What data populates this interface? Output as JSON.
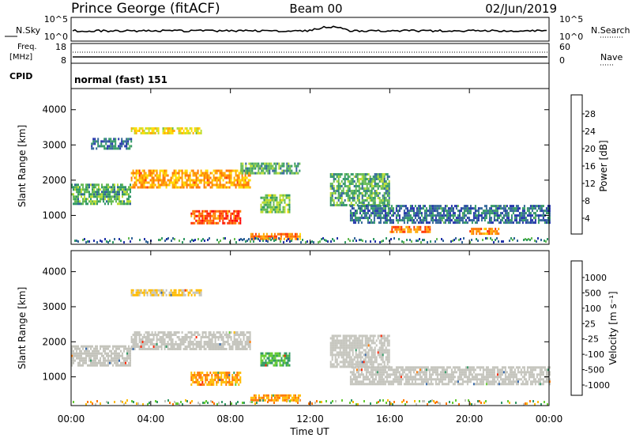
{
  "header": {
    "station": "Prince George (fitACF)",
    "beam": "Beam 00",
    "date": "02/Jun/2019"
  },
  "status_panels": {
    "nsky_label": "N.Sky",
    "nsky_ticks": [
      "10^5",
      "10^0"
    ],
    "nsearch_label": "N.Search",
    "nsearch_ticks": [
      "10^5",
      "10^0"
    ],
    "freq_label_1": "Freq.",
    "freq_label_2": "[MHz]",
    "freq_ticks": [
      "18",
      "8"
    ],
    "nave_label": "Nave",
    "nave_ticks": [
      "60",
      "0"
    ],
    "cpid_label": "CPID",
    "cpid_value": "normal (fast) 151"
  },
  "axes": {
    "y_label": "Slant Range [km]",
    "y_ticks": [
      "4000",
      "3000",
      "2000",
      "1000"
    ],
    "x_label": "Time UT",
    "x_ticks": [
      "00:00",
      "04:00",
      "08:00",
      "12:00",
      "16:00",
      "20:00",
      "00:00"
    ]
  },
  "power_colorbar": {
    "label": "Power [dB]",
    "ticks": [
      "28",
      "24",
      "20",
      "16",
      "12",
      "8",
      "4"
    ],
    "colors": [
      "#ff0000",
      "#ff3300",
      "#ff7700",
      "#ffaa00",
      "#ffdd00",
      "#bbdd33",
      "#66bb55",
      "#339966",
      "#336699",
      "#2233aa",
      "#0000ff"
    ]
  },
  "velocity_colorbar": {
    "label": "Velocity [m s⁻¹]",
    "ticks": [
      "1000",
      "500",
      "100",
      "25",
      "-25",
      "-100",
      "-500",
      "-1000"
    ],
    "colors": [
      "#2244aa",
      "#3366aa",
      "#339966",
      "#66cc33",
      "#bbbbbb",
      "#bbbbbb",
      "#ffbb00",
      "#ff7700",
      "#ff3300",
      "#ff0000"
    ]
  },
  "chart_data": {
    "type": "heatmap",
    "x_range_hours": [
      0,
      24
    ],
    "y_range_km": [
      180,
      4600
    ],
    "power_bands": [
      {
        "t0": 3.0,
        "t1": 6.5,
        "r0": 3300,
        "r1": 3500,
        "level": 18
      },
      {
        "t0": 1.0,
        "t1": 3.0,
        "r0": 2900,
        "r1": 3200,
        "level": 8
      },
      {
        "t0": 0.0,
        "t1": 3.0,
        "r0": 1300,
        "r1": 1900,
        "level": 12
      },
      {
        "t0": 3.0,
        "t1": 9.0,
        "r0": 1800,
        "r1": 2300,
        "level": 22
      },
      {
        "t0": 6.0,
        "t1": 8.5,
        "r0": 800,
        "r1": 1150,
        "level": 26
      },
      {
        "t0": 9.5,
        "t1": 11.0,
        "r0": 1100,
        "r1": 1600,
        "level": 14
      },
      {
        "t0": 8.5,
        "t1": 11.5,
        "r0": 2200,
        "r1": 2500,
        "level": 12
      },
      {
        "t0": 9.0,
        "t1": 11.5,
        "r0": 300,
        "r1": 500,
        "level": 24
      },
      {
        "t0": 13.0,
        "t1": 16.0,
        "r0": 1300,
        "r1": 2200,
        "level": 12
      },
      {
        "t0": 14.0,
        "t1": 24.0,
        "r0": 800,
        "r1": 1300,
        "level": 8
      },
      {
        "t0": 16.0,
        "t1": 18.0,
        "r0": 550,
        "r1": 700,
        "level": 24
      },
      {
        "t0": 20.0,
        "t1": 21.5,
        "r0": 450,
        "r1": 650,
        "level": 24
      }
    ],
    "velocity_bands": [
      {
        "t0": 3.0,
        "t1": 6.5,
        "r0": 3300,
        "r1": 3500,
        "velocity": -25
      },
      {
        "t0": 0.0,
        "t1": 3.0,
        "r0": 1300,
        "r1": 1900,
        "velocity": 0
      },
      {
        "t0": 3.0,
        "t1": 9.0,
        "r0": 1800,
        "r1": 2300,
        "velocity": 0
      },
      {
        "t0": 6.0,
        "t1": 8.5,
        "r0": 800,
        "r1": 1150,
        "velocity": -100
      },
      {
        "t0": 9.5,
        "t1": 11.0,
        "r0": 1300,
        "r1": 1700,
        "velocity": 100
      },
      {
        "t0": 9.0,
        "t1": 11.5,
        "r0": 300,
        "r1": 500,
        "velocity": -100
      },
      {
        "t0": 13.0,
        "t1": 16.0,
        "r0": 1300,
        "r1": 2200,
        "velocity": 0
      },
      {
        "t0": 14.0,
        "t1": 24.0,
        "r0": 800,
        "r1": 1300,
        "velocity": 0
      }
    ]
  }
}
